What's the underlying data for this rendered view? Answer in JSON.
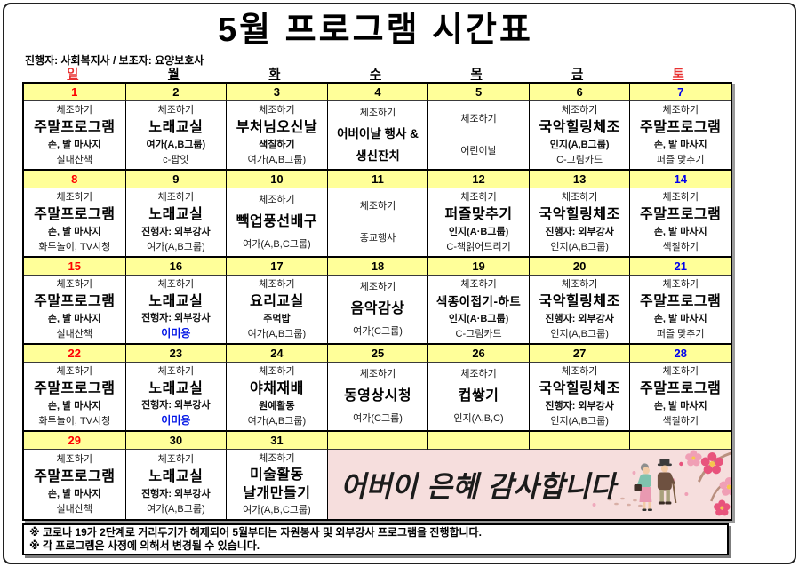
{
  "title": "5월 프로그램 시간표",
  "subtitle": "진행자: 사회복지사 / 보조자: 요양보호사",
  "colors": {
    "sunday_red": "#FF0000",
    "saturday_blue": "#0000EE",
    "date_strip_yellow": "#FFFF99",
    "banner_pink": "#F6DEDD",
    "highlight_blue_text": "#0014E6"
  },
  "weekday_header": [
    {
      "label": "일",
      "color": "red"
    },
    {
      "label": "월",
      "color": "black"
    },
    {
      "label": "화",
      "color": "black"
    },
    {
      "label": "수",
      "color": "black"
    },
    {
      "label": "목",
      "color": "black"
    },
    {
      "label": "금",
      "color": "black"
    },
    {
      "label": "토",
      "color": "red"
    }
  ],
  "weeks": [
    {
      "days": [
        {
          "num": "1",
          "numColor": "red",
          "lines": [
            {
              "t": "체조하기",
              "s": "top"
            },
            {
              "t": "주말프로그램",
              "s": "main"
            },
            {
              "t": "손, 발 마사지",
              "s": "sub"
            },
            {
              "t": "실내산책",
              "s": "bottom"
            }
          ]
        },
        {
          "num": "2",
          "numColor": "black",
          "lines": [
            {
              "t": "체조하기",
              "s": "top"
            },
            {
              "t": "노래교실",
              "s": "main"
            },
            {
              "t": "여가(A,B그룹)",
              "s": "sub"
            },
            {
              "t": "c-팝잇",
              "s": "bottom"
            }
          ]
        },
        {
          "num": "3",
          "numColor": "black",
          "lines": [
            {
              "t": "체조하기",
              "s": "top"
            },
            {
              "t": "부처님오신날",
              "s": "main"
            },
            {
              "t": "색칠하기",
              "s": "sub"
            },
            {
              "t": "여가(A,B그룹)",
              "s": "bottom"
            }
          ]
        },
        {
          "num": "4",
          "numColor": "black",
          "lines": [
            {
              "t": "체조하기",
              "s": "top"
            },
            {
              "t": "어버이날 행사 &",
              "s": "mainsm"
            },
            {
              "t": "생신잔치",
              "s": "mainsm"
            }
          ]
        },
        {
          "num": "5",
          "numColor": "black",
          "lines": [
            {
              "t": "체조하기",
              "s": "top"
            },
            {
              "t": "어린이날",
              "s": "plain"
            }
          ]
        },
        {
          "num": "6",
          "numColor": "black",
          "lines": [
            {
              "t": "체조하기",
              "s": "top"
            },
            {
              "t": "국악힐링체조",
              "s": "main"
            },
            {
              "t": "인지(A,B그룹)",
              "s": "sub"
            },
            {
              "t": "C-그림카드",
              "s": "bottom"
            }
          ]
        },
        {
          "num": "7",
          "numColor": "blue",
          "lines": [
            {
              "t": "체조하기",
              "s": "top"
            },
            {
              "t": "주말프로그램",
              "s": "main"
            },
            {
              "t": "손, 발 마사지",
              "s": "sub"
            },
            {
              "t": "퍼즐 맞추기",
              "s": "bottom"
            }
          ]
        }
      ]
    },
    {
      "days": [
        {
          "num": "8",
          "numColor": "red",
          "lines": [
            {
              "t": "체조하기",
              "s": "top"
            },
            {
              "t": "주말프로그램",
              "s": "main"
            },
            {
              "t": "손, 발 마사지",
              "s": "sub"
            },
            {
              "t": "화투놀이, TV시청",
              "s": "bottom"
            }
          ]
        },
        {
          "num": "9",
          "numColor": "black",
          "lines": [
            {
              "t": "체조하기",
              "s": "top"
            },
            {
              "t": "노래교실",
              "s": "main"
            },
            {
              "t": "진행자: 외부강사",
              "s": "sub"
            },
            {
              "t": "여가(A,B그룹)",
              "s": "bottom"
            }
          ]
        },
        {
          "num": "10",
          "numColor": "black",
          "lines": [
            {
              "t": "체조하기",
              "s": "top"
            },
            {
              "t": "빽업풍선배구",
              "s": "main"
            },
            {
              "t": "여가(A,B,C그룹)",
              "s": "plain"
            }
          ]
        },
        {
          "num": "11",
          "numColor": "black",
          "lines": [
            {
              "t": "체조하기",
              "s": "top"
            },
            {
              "t": "종교행사",
              "s": "plain"
            }
          ]
        },
        {
          "num": "12",
          "numColor": "black",
          "lines": [
            {
              "t": "체조하기",
              "s": "top"
            },
            {
              "t": "퍼즐맞추기",
              "s": "main"
            },
            {
              "t": "인지(A·B그룹)",
              "s": "sub"
            },
            {
              "t": "C-책읽어드리기",
              "s": "bottom"
            }
          ]
        },
        {
          "num": "13",
          "numColor": "black",
          "lines": [
            {
              "t": "체조하기",
              "s": "top"
            },
            {
              "t": "국악힐링체조",
              "s": "main"
            },
            {
              "t": "진행자: 외부강사",
              "s": "sub"
            },
            {
              "t": "인지(A,B그룹)",
              "s": "bottom"
            }
          ]
        },
        {
          "num": "14",
          "numColor": "blue",
          "lines": [
            {
              "t": "체조하기",
              "s": "top"
            },
            {
              "t": "주말프로그램",
              "s": "main"
            },
            {
              "t": "손, 발 마사지",
              "s": "sub"
            },
            {
              "t": "색칠하기",
              "s": "bottom"
            }
          ]
        }
      ]
    },
    {
      "days": [
        {
          "num": "15",
          "numColor": "red",
          "lines": [
            {
              "t": "체조하기",
              "s": "top"
            },
            {
              "t": "주말프로그램",
              "s": "main"
            },
            {
              "t": "손, 발 마사지",
              "s": "sub"
            },
            {
              "t": "실내산책",
              "s": "bottom"
            }
          ]
        },
        {
          "num": "16",
          "numColor": "black",
          "lines": [
            {
              "t": "체조하기",
              "s": "top"
            },
            {
              "t": "노래교실",
              "s": "main"
            },
            {
              "t": "진행자: 외부강사",
              "s": "sub"
            },
            {
              "t": "이미용",
              "s": "blue"
            }
          ]
        },
        {
          "num": "17",
          "numColor": "black",
          "lines": [
            {
              "t": "체조하기",
              "s": "top"
            },
            {
              "t": "요리교실",
              "s": "main"
            },
            {
              "t": "주먹밥",
              "s": "sub"
            },
            {
              "t": "여가(A,B그룹)",
              "s": "bottom"
            }
          ]
        },
        {
          "num": "18",
          "numColor": "black",
          "lines": [
            {
              "t": "체조하기",
              "s": "top"
            },
            {
              "t": "음악감상",
              "s": "main"
            },
            {
              "t": "여가(C그룹)",
              "s": "plain"
            }
          ]
        },
        {
          "num": "19",
          "numColor": "black",
          "lines": [
            {
              "t": "체조하기",
              "s": "top"
            },
            {
              "t": "색종이접기-하트",
              "s": "main"
            },
            {
              "t": "인지(A·B그룹)",
              "s": "sub"
            },
            {
              "t": "C-그림카드",
              "s": "bottom"
            }
          ]
        },
        {
          "num": "20",
          "numColor": "black",
          "lines": [
            {
              "t": "체조하기",
              "s": "top"
            },
            {
              "t": "국악힐링체조",
              "s": "main"
            },
            {
              "t": "진행자: 외부강사",
              "s": "sub"
            },
            {
              "t": "인지(A,B그룹)",
              "s": "bottom"
            }
          ]
        },
        {
          "num": "21",
          "numColor": "blue",
          "lines": [
            {
              "t": "체조하기",
              "s": "top"
            },
            {
              "t": "주말프로그램",
              "s": "main"
            },
            {
              "t": "손, 발 마사지",
              "s": "sub"
            },
            {
              "t": "퍼즐 맞추기",
              "s": "bottom"
            }
          ]
        }
      ]
    },
    {
      "days": [
        {
          "num": "22",
          "numColor": "red",
          "lines": [
            {
              "t": "체조하기",
              "s": "top"
            },
            {
              "t": "주말프로그램",
              "s": "main"
            },
            {
              "t": "손, 발 마사지",
              "s": "sub"
            },
            {
              "t": "화투놀이, TV시청",
              "s": "bottom"
            }
          ]
        },
        {
          "num": "23",
          "numColor": "black",
          "lines": [
            {
              "t": "체조하기",
              "s": "top"
            },
            {
              "t": "노래교실",
              "s": "main"
            },
            {
              "t": "진행자: 외부강사",
              "s": "sub"
            },
            {
              "t": "이미용",
              "s": "blue"
            }
          ]
        },
        {
          "num": "24",
          "numColor": "black",
          "lines": [
            {
              "t": "체조하기",
              "s": "top"
            },
            {
              "t": "야채재배",
              "s": "main"
            },
            {
              "t": "원예활동",
              "s": "sub"
            },
            {
              "t": "여가(A,B그룹)",
              "s": "bottom"
            }
          ]
        },
        {
          "num": "25",
          "numColor": "black",
          "lines": [
            {
              "t": "체조하기",
              "s": "top"
            },
            {
              "t": "동영상시청",
              "s": "main"
            },
            {
              "t": "여가(C그룹)",
              "s": "plain"
            }
          ]
        },
        {
          "num": "26",
          "numColor": "black",
          "lines": [
            {
              "t": "체조하기",
              "s": "top"
            },
            {
              "t": "컵쌓기",
              "s": "main"
            },
            {
              "t": "인지(A,B,C)",
              "s": "plain"
            }
          ]
        },
        {
          "num": "27",
          "numColor": "black",
          "lines": [
            {
              "t": "체조하기",
              "s": "top"
            },
            {
              "t": "국악힐링체조",
              "s": "main"
            },
            {
              "t": "진행자: 외부강사",
              "s": "sub"
            },
            {
              "t": "인지(A,B그룹)",
              "s": "bottom"
            }
          ]
        },
        {
          "num": "28",
          "numColor": "blue",
          "lines": [
            {
              "t": "체조하기",
              "s": "top"
            },
            {
              "t": "주말프로그램",
              "s": "main"
            },
            {
              "t": "손, 발 마사지",
              "s": "sub"
            },
            {
              "t": "색칠하기",
              "s": "bottom"
            }
          ]
        }
      ]
    },
    {
      "days": [
        {
          "num": "29",
          "numColor": "red",
          "lines": [
            {
              "t": "체조하기",
              "s": "top"
            },
            {
              "t": "주말프로그램",
              "s": "main"
            },
            {
              "t": "손, 발 마사지",
              "s": "sub"
            },
            {
              "t": "실내산책",
              "s": "bottom"
            }
          ]
        },
        {
          "num": "30",
          "numColor": "black",
          "lines": [
            {
              "t": "체조하기",
              "s": "top"
            },
            {
              "t": "노래교실",
              "s": "main"
            },
            {
              "t": "진행자: 외부강사",
              "s": "sub"
            },
            {
              "t": "여가(A,B그룹)",
              "s": "bottom"
            }
          ]
        },
        {
          "num": "31",
          "numColor": "black",
          "lines": [
            {
              "t": "체조하기",
              "s": "top"
            },
            {
              "t": "미술활동",
              "s": "main"
            },
            {
              "t": "날개만들기",
              "s": "main"
            },
            {
              "t": "여가(A,B,C그룹)",
              "s": "bottom"
            }
          ]
        }
      ],
      "banner": {
        "text": "어버이 은혜 감사합니다"
      }
    }
  ],
  "notes": [
    "※ 코로나 19가 2단계로 거리두기가 해제되어 5월부터는 자원봉사 및 외부강사 프로그램을 진행합니다.",
    "※ 각 프로그램은 사정에 의해서 변경될 수 있습니다."
  ]
}
